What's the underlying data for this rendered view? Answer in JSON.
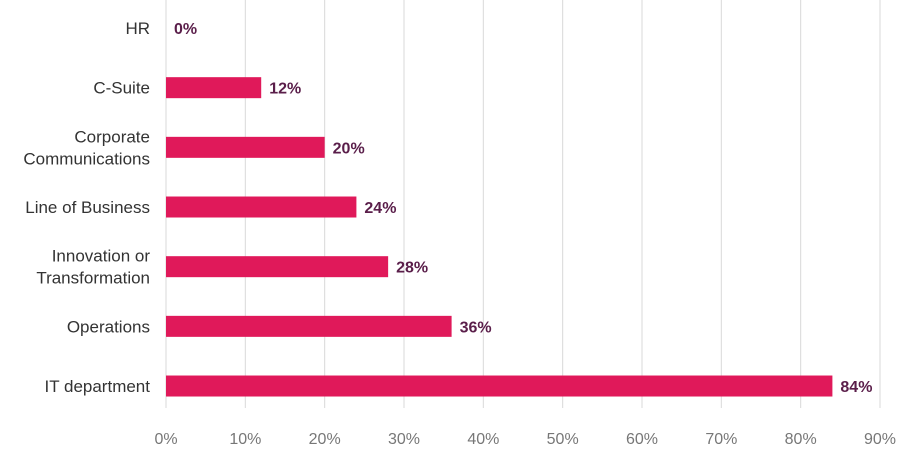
{
  "chart_data": {
    "type": "bar",
    "orientation": "horizontal",
    "categories": [
      [
        "HR"
      ],
      [
        "C-Suite"
      ],
      [
        "Corporate",
        "Communications"
      ],
      [
        "Line of Business"
      ],
      [
        "Innovation or",
        "Transformation"
      ],
      [
        "Operations"
      ],
      [
        "IT department"
      ]
    ],
    "values": [
      0,
      12,
      20,
      24,
      28,
      36,
      84
    ],
    "value_labels": [
      "0%",
      "12%",
      "20%",
      "24%",
      "28%",
      "36%",
      "84%"
    ],
    "xlim": [
      0,
      90
    ],
    "x_ticks": [
      "0%",
      "10%",
      "20%",
      "30%",
      "40%",
      "50%",
      "60%",
      "70%",
      "80%",
      "90%"
    ],
    "grid": "vertical",
    "bar_color": "#e0195a",
    "label_color": "#5a1e4a"
  }
}
